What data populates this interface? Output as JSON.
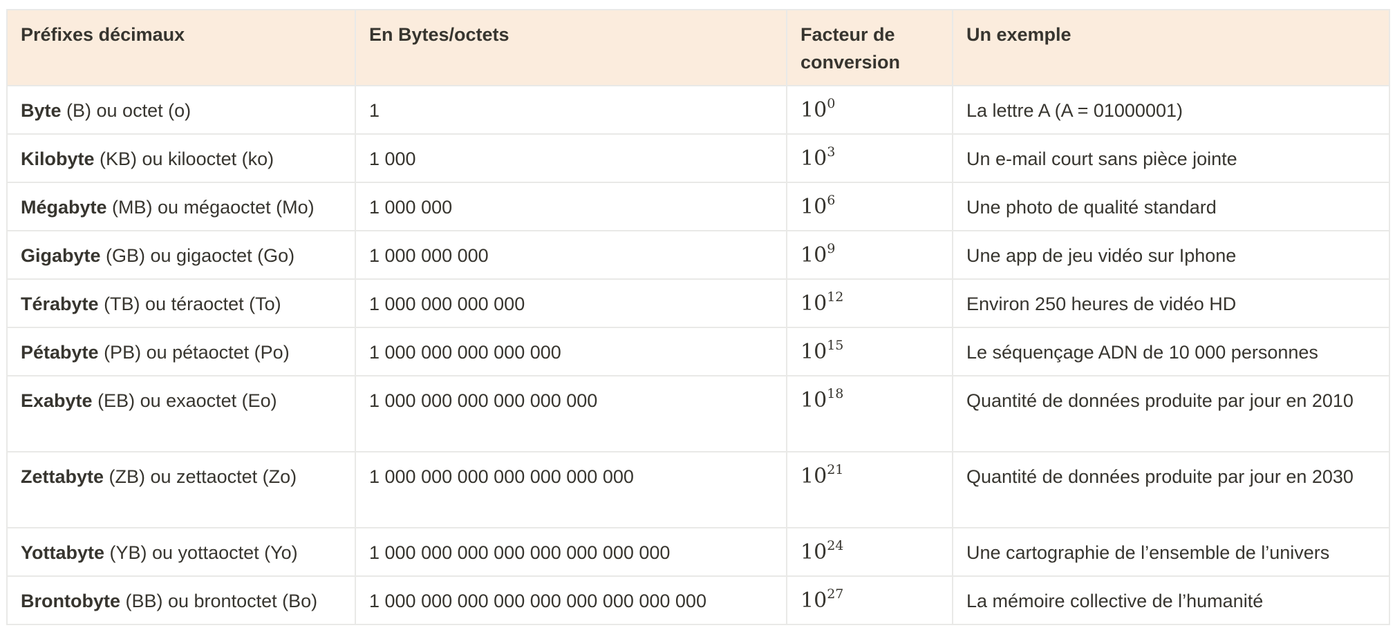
{
  "table": {
    "headers": [
      "Préfixes décimaux",
      "En Bytes/octets",
      "Facteur de conversion",
      "Un exemple"
    ],
    "rows": [
      {
        "name": "Byte",
        "rest": " (B) ou octet (o)",
        "bytes": "1",
        "base": "10",
        "exp": "0",
        "example": "La lettre A (A = 01000001)"
      },
      {
        "name": "Kilobyte",
        "rest": " (KB) ou kilooctet (ko)",
        "bytes": "1 000",
        "base": "10",
        "exp": "3",
        "example": "Un e-mail court sans pièce jointe"
      },
      {
        "name": "Mégabyte",
        "rest": " (MB) ou mégaoctet (Mo)",
        "bytes": "1 000 000",
        "base": "10",
        "exp": "6",
        "example": "Une photo de qualité standard"
      },
      {
        "name": "Gigabyte",
        "rest": " (GB) ou gigaoctet (Go)",
        "bytes": "1 000 000 000",
        "base": "10",
        "exp": "9",
        "example": "Une app de jeu vidéo sur Iphone"
      },
      {
        "name": "Térabyte",
        "rest": " (TB) ou téraoctet (To)",
        "bytes": "1 000 000 000 000",
        "base": "10",
        "exp": "12",
        "example": "Environ 250 heures de vidéo HD"
      },
      {
        "name": "Pétabyte",
        "rest": " (PB) ou pétaoctet (Po)",
        "bytes": "1 000 000 000 000 000",
        "base": "10",
        "exp": "15",
        "example": "Le séquençage ADN de 10 000 personnes"
      },
      {
        "name": "Exabyte",
        "rest": " (EB) ou exaoctet (Eo)",
        "bytes": "1 000 000 000 000 000 000",
        "base": "10",
        "exp": "18",
        "example": "Quantité de données produite par jour en 2010"
      },
      {
        "name": "Zettabyte",
        "rest": " (ZB) ou zettaoctet (Zo)",
        "bytes": "1 000 000 000 000 000 000 000",
        "base": "10",
        "exp": "21",
        "example": "Quantité de données produite par jour en 2030"
      },
      {
        "name": "Yottabyte",
        "rest": " (YB) ou yottaoctet (Yo)",
        "bytes": "1 000 000 000 000 000 000 000 000",
        "base": "10",
        "exp": "24",
        "example": "Une cartographie de l’ensemble de l’univers"
      },
      {
        "name": "Brontobyte",
        "rest": " (BB) ou brontoctet (Bo)",
        "bytes": "1 000 000 000 000 000 000 000 000 000",
        "base": "10",
        "exp": "27",
        "example": "La mémoire collective de l’humanité"
      }
    ]
  }
}
